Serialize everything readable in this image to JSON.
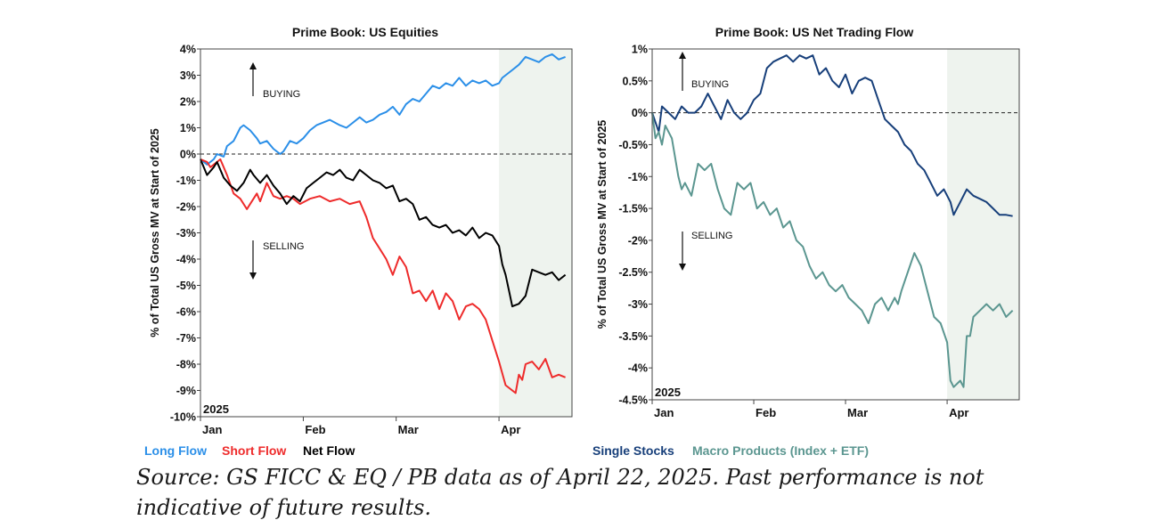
{
  "chart_data": [
    {
      "type": "line",
      "title": "Prime Book: US Equities",
      "ylabel": "% of Total US Gross MV at Start of 2025",
      "year_label": "2025",
      "ylim": [
        -10,
        4
      ],
      "yticks": [
        4,
        3,
        2,
        1,
        0,
        -1,
        -2,
        -3,
        -4,
        -5,
        -6,
        -7,
        -8,
        -9,
        -10
      ],
      "ytick_labels": [
        "4%",
        "3%",
        "2%",
        "1%",
        "0%",
        "-1%",
        "-2%",
        "-3%",
        "-4%",
        "-5%",
        "-6%",
        "-7%",
        "-8%",
        "-9%",
        "-10%"
      ],
      "xlim": [
        0,
        112
      ],
      "xticks": [
        0,
        31,
        59,
        90
      ],
      "xtick_labels": [
        "Jan",
        "Feb",
        "Mar",
        "Apr"
      ],
      "shaded_from": 90,
      "annotations": [
        "BUYING",
        "SELLING"
      ],
      "series": [
        {
          "name": "Long Flow",
          "color": "#2b8fe8",
          "x": [
            0,
            2,
            4,
            5,
            7,
            8,
            10,
            12,
            13,
            15,
            17,
            18,
            20,
            22,
            24,
            25,
            27,
            29,
            31,
            33,
            35,
            37,
            39,
            42,
            44,
            46,
            48,
            50,
            52,
            54,
            56,
            58,
            60,
            62,
            64,
            66,
            68,
            70,
            72,
            74,
            76,
            78,
            80,
            82,
            84,
            86,
            88,
            90,
            91,
            92,
            94,
            96,
            98,
            100,
            102,
            104,
            106,
            108,
            110
          ],
          "y": [
            -0.2,
            -0.4,
            -0.2,
            0.0,
            -0.1,
            0.3,
            0.5,
            1.0,
            1.1,
            0.9,
            0.6,
            0.4,
            0.5,
            0.2,
            0.0,
            0.1,
            0.5,
            0.4,
            0.6,
            0.9,
            1.1,
            1.2,
            1.3,
            1.1,
            1.0,
            1.2,
            1.4,
            1.2,
            1.3,
            1.5,
            1.6,
            1.8,
            1.5,
            1.9,
            2.1,
            2.0,
            2.3,
            2.6,
            2.5,
            2.7,
            2.6,
            2.9,
            2.6,
            2.8,
            2.7,
            2.8,
            2.6,
            2.7,
            2.9,
            3.0,
            3.2,
            3.4,
            3.7,
            3.6,
            3.5,
            3.7,
            3.8,
            3.6,
            3.7
          ]
        },
        {
          "name": "Short Flow",
          "color": "#ee2b2b",
          "x": [
            0,
            2,
            3,
            5,
            6,
            8,
            10,
            12,
            14,
            15,
            17,
            18,
            20,
            22,
            24,
            26,
            28,
            30,
            33,
            36,
            39,
            42,
            45,
            48,
            50,
            52,
            54,
            56,
            58,
            60,
            62,
            64,
            66,
            68,
            70,
            72,
            74,
            76,
            78,
            80,
            82,
            84,
            86,
            88,
            90,
            92,
            94,
            95,
            96,
            97,
            98,
            100,
            102,
            104,
            106,
            108,
            110
          ],
          "y": [
            -0.2,
            -0.3,
            -0.5,
            -0.3,
            -0.2,
            -0.8,
            -1.5,
            -1.7,
            -2.1,
            -1.9,
            -1.5,
            -1.8,
            -1.1,
            -1.6,
            -1.7,
            -1.6,
            -1.7,
            -1.9,
            -1.7,
            -1.6,
            -1.8,
            -1.7,
            -1.9,
            -1.8,
            -2.4,
            -3.2,
            -3.6,
            -4.0,
            -4.6,
            -3.9,
            -4.3,
            -5.3,
            -5.2,
            -5.6,
            -5.2,
            -5.9,
            -5.3,
            -5.6,
            -6.3,
            -5.8,
            -5.7,
            -5.9,
            -6.3,
            -7.1,
            -7.9,
            -8.8,
            -9.0,
            -9.1,
            -8.4,
            -8.6,
            -8.0,
            -7.9,
            -8.2,
            -7.8,
            -8.5,
            -8.4,
            -8.5
          ]
        },
        {
          "name": "Net Flow",
          "color": "#000000",
          "x": [
            0,
            2,
            4,
            5,
            7,
            9,
            11,
            13,
            15,
            16,
            18,
            20,
            22,
            24,
            26,
            28,
            30,
            32,
            34,
            36,
            38,
            40,
            42,
            44,
            46,
            48,
            50,
            52,
            54,
            56,
            58,
            60,
            62,
            64,
            66,
            68,
            70,
            72,
            74,
            76,
            78,
            80,
            82,
            84,
            86,
            88,
            90,
            91,
            92,
            93,
            94,
            96,
            98,
            100,
            102,
            104,
            106,
            108,
            110
          ],
          "y": [
            -0.2,
            -0.8,
            -0.5,
            -0.3,
            -0.9,
            -1.2,
            -1.4,
            -1.1,
            -0.6,
            -0.8,
            -1.1,
            -0.8,
            -1.2,
            -1.5,
            -1.9,
            -1.6,
            -1.8,
            -1.3,
            -1.1,
            -0.9,
            -0.7,
            -0.8,
            -0.6,
            -0.9,
            -1.0,
            -0.6,
            -0.8,
            -1.0,
            -1.1,
            -1.3,
            -1.2,
            -1.8,
            -1.7,
            -1.9,
            -2.5,
            -2.4,
            -2.7,
            -2.8,
            -2.7,
            -3.0,
            -2.9,
            -3.1,
            -2.8,
            -3.2,
            -3.0,
            -3.1,
            -3.5,
            -4.2,
            -4.6,
            -5.2,
            -5.8,
            -5.7,
            -5.4,
            -4.4,
            -4.5,
            -4.6,
            -4.5,
            -4.8,
            -4.6
          ]
        }
      ]
    },
    {
      "type": "line",
      "title": "Prime Book: US Net Trading Flow",
      "ylabel": "% of Total US Gross MV at Start of 2025",
      "year_label": "2025",
      "ylim": [
        -4.5,
        1
      ],
      "yticks": [
        1,
        0.5,
        0,
        -0.5,
        -1,
        -1.5,
        -2,
        -2.5,
        -3,
        -3.5,
        -4,
        -4.5
      ],
      "ytick_labels": [
        "1%",
        "0.5%",
        "0%",
        "-0.5%",
        "-1%",
        "-1.5%",
        "-2%",
        "-2.5%",
        "-3%",
        "-3.5%",
        "-4%",
        "-4.5%"
      ],
      "xlim": [
        0,
        112
      ],
      "xticks": [
        0,
        31,
        59,
        90
      ],
      "xtick_labels": [
        "Jan",
        "Feb",
        "Mar",
        "Apr"
      ],
      "shaded_from": 90,
      "annotations": [
        "BUYING",
        "SELLING"
      ],
      "series": [
        {
          "name": "Single Stocks",
          "color": "#173f7a",
          "x": [
            0,
            2,
            3,
            5,
            7,
            9,
            11,
            13,
            15,
            17,
            19,
            21,
            23,
            25,
            27,
            29,
            31,
            33,
            35,
            37,
            39,
            41,
            43,
            45,
            47,
            49,
            51,
            53,
            55,
            57,
            59,
            61,
            63,
            65,
            67,
            69,
            71,
            73,
            75,
            77,
            79,
            81,
            83,
            85,
            87,
            89,
            91,
            92,
            93,
            94,
            96,
            98,
            100,
            102,
            104,
            106,
            108,
            110
          ],
          "y": [
            0.0,
            -0.3,
            0.1,
            0.0,
            -0.1,
            0.1,
            0.0,
            0.0,
            0.1,
            0.3,
            0.1,
            -0.1,
            0.2,
            0.0,
            -0.1,
            0.0,
            0.2,
            0.3,
            0.7,
            0.8,
            0.85,
            0.9,
            0.8,
            0.9,
            0.85,
            0.9,
            0.6,
            0.7,
            0.5,
            0.4,
            0.6,
            0.3,
            0.5,
            0.55,
            0.5,
            0.2,
            -0.1,
            -0.2,
            -0.3,
            -0.5,
            -0.6,
            -0.8,
            -0.9,
            -1.1,
            -1.3,
            -1.2,
            -1.4,
            -1.6,
            -1.5,
            -1.4,
            -1.2,
            -1.3,
            -1.35,
            -1.4,
            -1.5,
            -1.6,
            -1.6,
            -1.62
          ]
        },
        {
          "name": "Macro Products (Index + ETF)",
          "color": "#5b9690",
          "x": [
            0,
            1,
            2,
            3,
            4,
            6,
            8,
            9,
            10,
            12,
            14,
            16,
            18,
            20,
            22,
            24,
            26,
            28,
            30,
            32,
            34,
            36,
            38,
            40,
            42,
            44,
            46,
            48,
            50,
            52,
            54,
            56,
            58,
            60,
            62,
            64,
            66,
            68,
            70,
            72,
            74,
            75,
            76,
            78,
            80,
            82,
            84,
            86,
            88,
            90,
            91,
            92,
            94,
            95,
            96,
            97,
            98,
            100,
            102,
            104,
            106,
            108,
            110
          ],
          "y": [
            0,
            -0.4,
            -0.3,
            -0.5,
            -0.2,
            -0.4,
            -1.0,
            -1.2,
            -1.1,
            -1.3,
            -0.8,
            -0.9,
            -0.8,
            -1.2,
            -1.5,
            -1.6,
            -1.1,
            -1.2,
            -1.1,
            -1.5,
            -1.4,
            -1.6,
            -1.5,
            -1.8,
            -1.7,
            -2.0,
            -2.1,
            -2.4,
            -2.6,
            -2.5,
            -2.7,
            -2.8,
            -2.7,
            -2.9,
            -3.0,
            -3.1,
            -3.3,
            -3.0,
            -2.9,
            -3.1,
            -2.9,
            -3.0,
            -2.8,
            -2.5,
            -2.2,
            -2.4,
            -2.8,
            -3.2,
            -3.3,
            -3.6,
            -4.2,
            -4.3,
            -4.2,
            -4.3,
            -3.5,
            -3.5,
            -3.2,
            -3.1,
            -3.0,
            -3.1,
            -3.0,
            -3.2,
            -3.1
          ]
        }
      ]
    }
  ],
  "source_line_1": "Source: GS FICC & EQ / PB  data as of April 22, 2025. Past performance is not",
  "source_line_2": "indicative of future results."
}
